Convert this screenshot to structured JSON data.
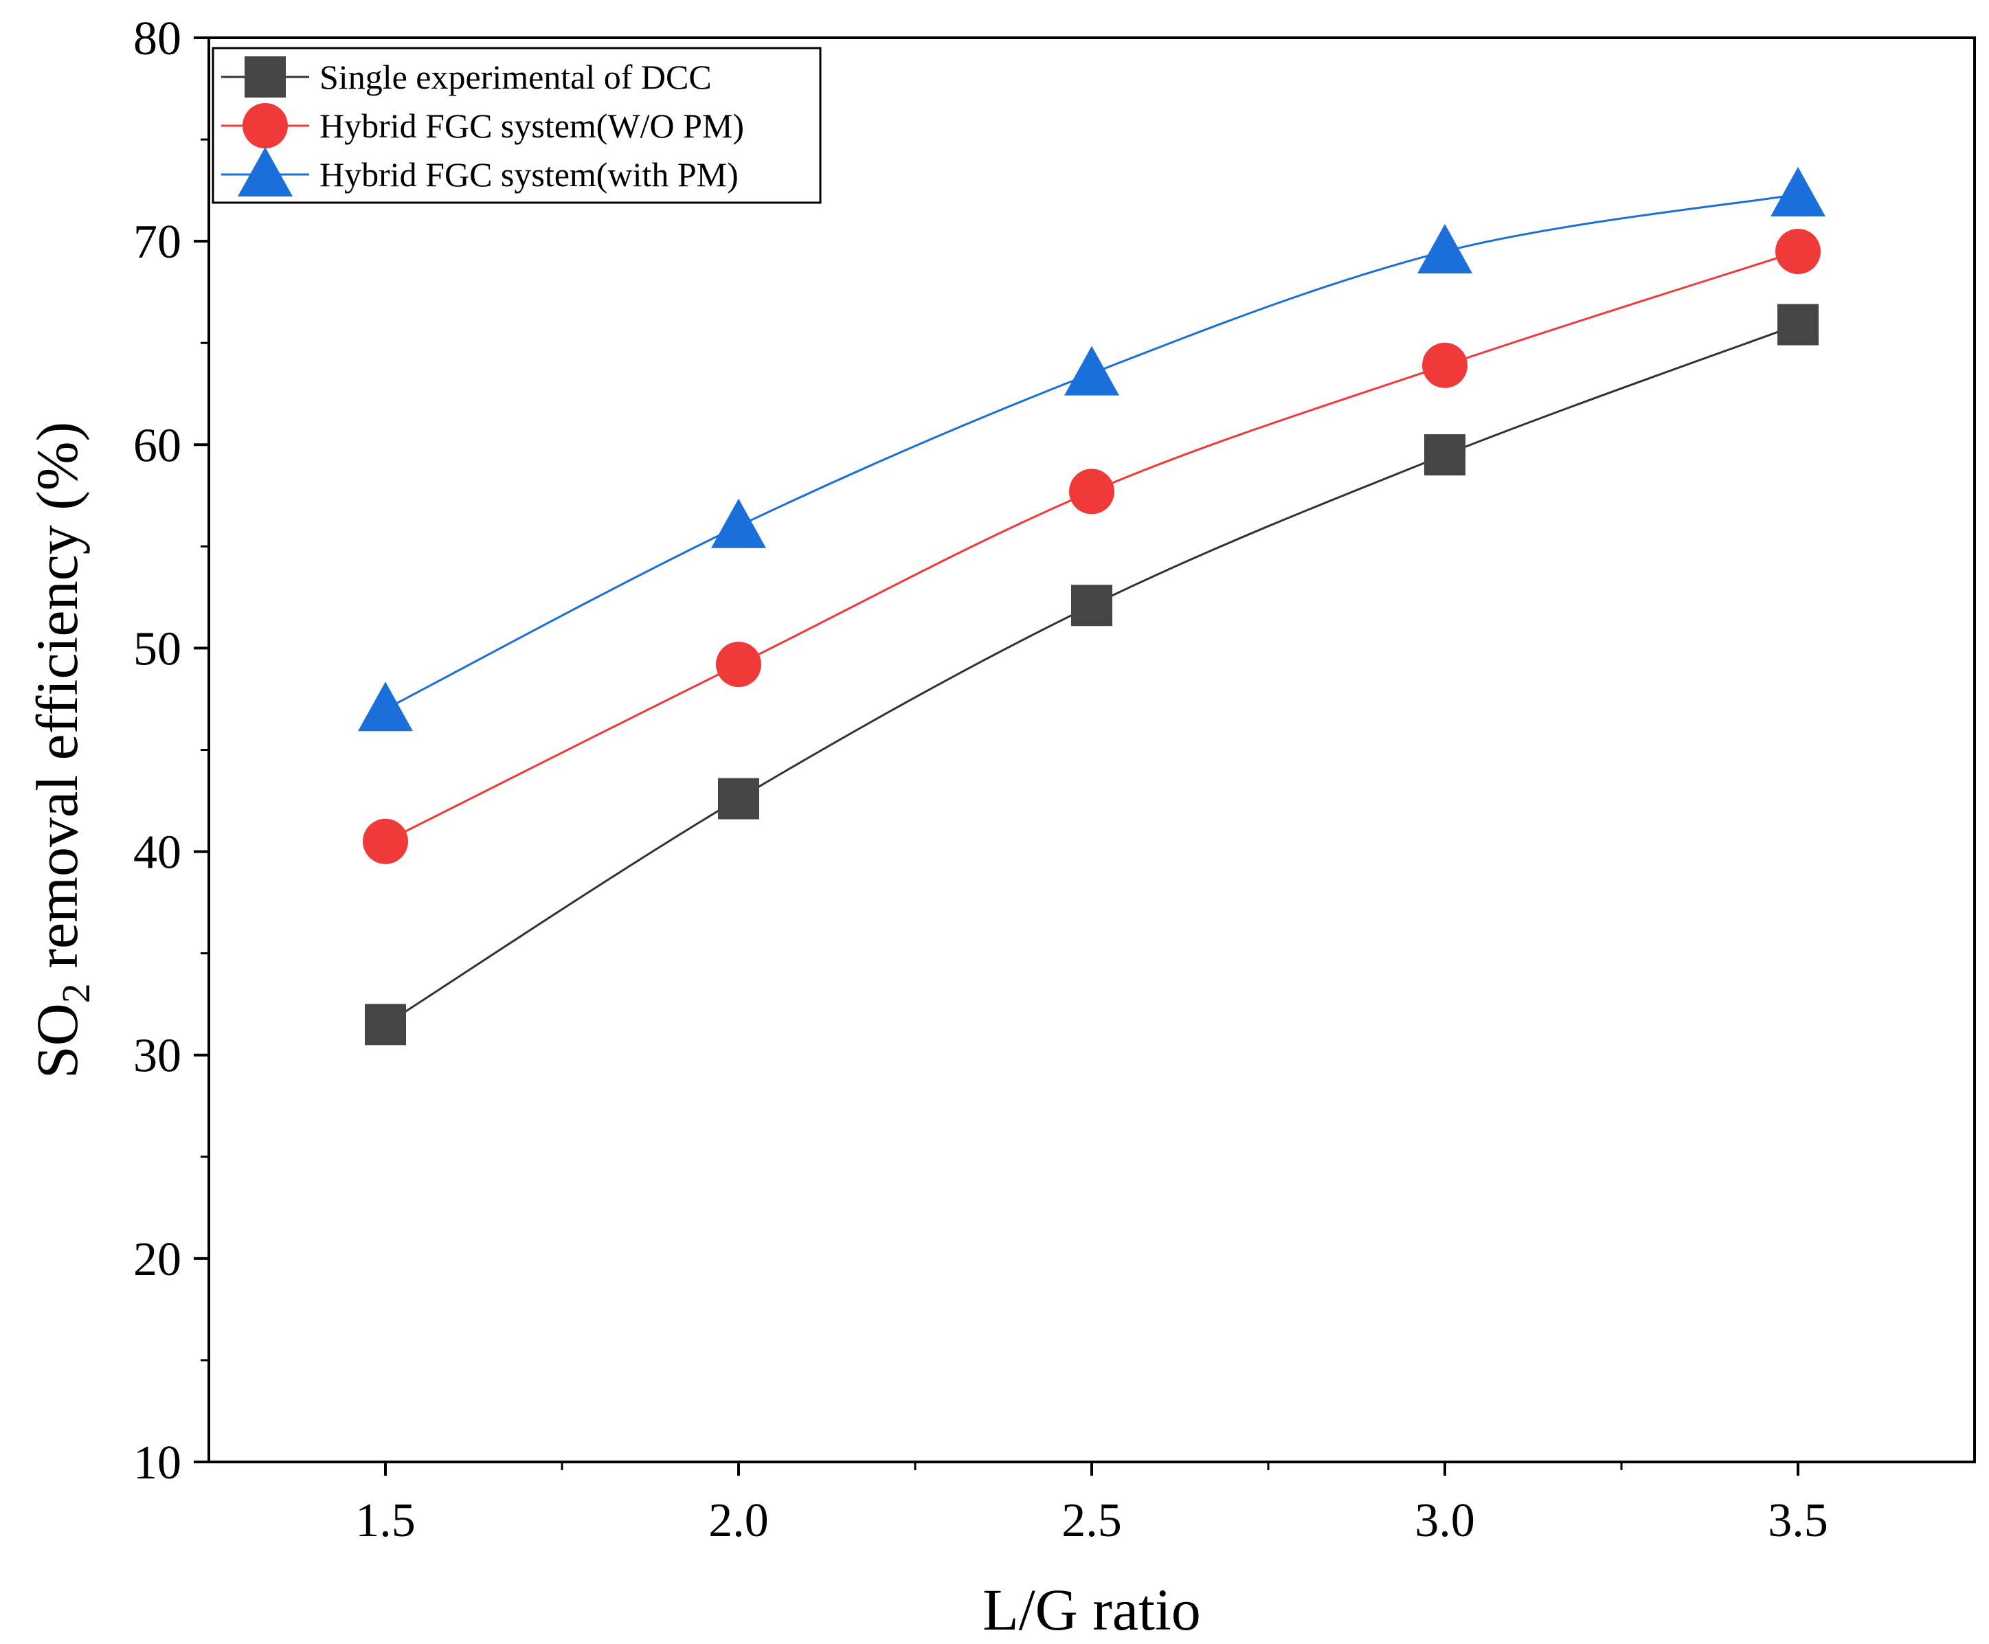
{
  "chart_data": {
    "type": "line",
    "title": "",
    "xlabel": "L/G ratio",
    "ylabel": {
      "prefix": "SO",
      "subscript": "2",
      "suffix": " removal efficiency (%)"
    },
    "x": [
      1.5,
      2.0,
      2.5,
      3.0,
      3.5
    ],
    "x_tick_labels": [
      "1.5",
      "2.0",
      "2.5",
      "3.0",
      "3.5"
    ],
    "y_tick_labels": [
      "10",
      "20",
      "30",
      "40",
      "50",
      "60",
      "70",
      "80"
    ],
    "xlim": [
      1.25,
      3.75
    ],
    "ylim": [
      10,
      80
    ],
    "grid": false,
    "legend_position": "top-left",
    "series": [
      {
        "name": "Single experimental of DCC",
        "marker": "square",
        "color": "#454545",
        "line_color": "#333333",
        "values": [
          31.5,
          42.6,
          52.1,
          59.5,
          65.9
        ]
      },
      {
        "name": "Hybrid FGC system(W/O PM)",
        "marker": "circle",
        "color": "#f03a3a",
        "line_color": "#f03a3a",
        "values": [
          40.5,
          49.2,
          57.7,
          63.9,
          69.5
        ]
      },
      {
        "name": "Hybrid FGC system(with PM)",
        "marker": "triangle",
        "color": "#1a6fdb",
        "line_color": "#1a6fdb",
        "values": [
          47.0,
          56.0,
          63.5,
          69.5,
          72.3
        ]
      }
    ]
  }
}
